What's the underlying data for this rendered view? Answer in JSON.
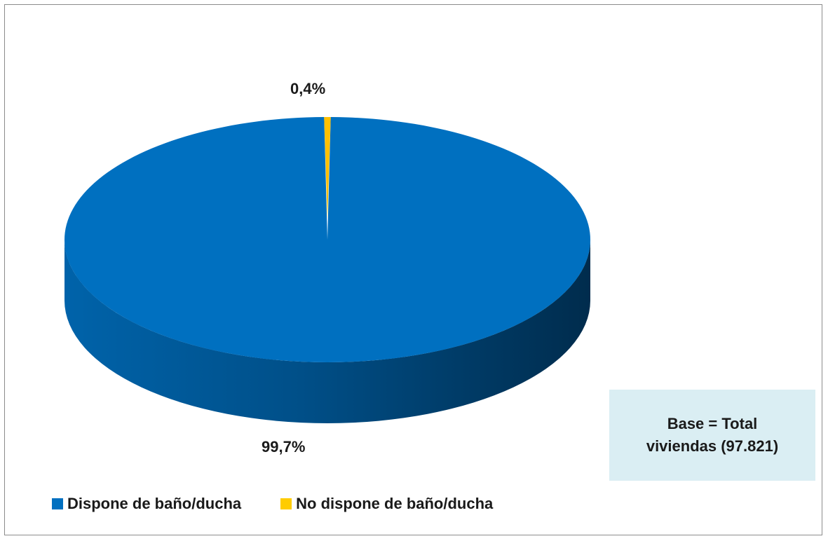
{
  "chart_data": {
    "type": "pie",
    "title": "",
    "series": [
      {
        "categories": [
          "Dispone de baño/ducha",
          "No dispone de baño/ducha"
        ],
        "values": [
          99.7,
          0.4
        ],
        "labels": [
          "99,7%",
          "0,4%"
        ],
        "colors": [
          "#0070c0",
          "#ffc000"
        ]
      }
    ],
    "legend": "bottom-left",
    "style": "3d"
  },
  "legend": {
    "items": [
      {
        "label": "Dispone de baño/ducha",
        "color": "#0070c0"
      },
      {
        "label": "No dispone de baño/ducha",
        "color": "#ffcc00"
      }
    ]
  },
  "base_note": "Base = Total viviendas (97.821)"
}
